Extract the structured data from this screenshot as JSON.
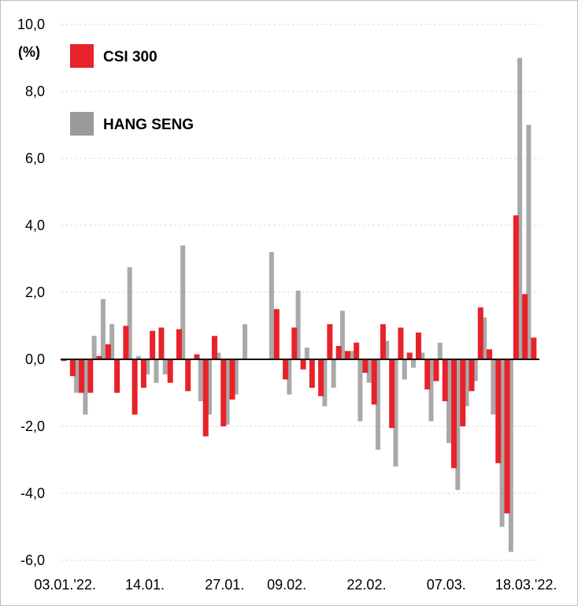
{
  "chart_data": {
    "type": "bar",
    "unit_label": "(%)",
    "ylim": [
      -6,
      10
    ],
    "y_ticks": [
      "10,0",
      "8,0",
      "6,0",
      "4,0",
      "2,0",
      "0,0",
      "-2,0",
      "-4,0",
      "-6,0"
    ],
    "y_tick_values": [
      10,
      8,
      6,
      4,
      2,
      0,
      -2,
      -4,
      -6
    ],
    "grid": true,
    "legend_position": "top-left",
    "x_labels": [
      {
        "label": "03.01.'22.",
        "index": 0
      },
      {
        "label": "14.01.",
        "index": 9
      },
      {
        "label": "27.01.",
        "index": 18
      },
      {
        "label": "09.02.",
        "index": 25
      },
      {
        "label": "22.02.",
        "index": 34
      },
      {
        "label": "07.03.",
        "index": 43
      },
      {
        "label": "18.03.'22.",
        "index": 52
      }
    ],
    "colors": {
      "csi300": "#e8222a",
      "hangseng": "#9a9a9a",
      "zero_line": "#000000",
      "grid": "#d9d9d9"
    },
    "series": [
      {
        "name": "CSI 300",
        "values": [
          -0.05,
          -0.5,
          -1.0,
          -1.0,
          0.1,
          0.45,
          -1.0,
          1.0,
          -1.65,
          -0.85,
          0.85,
          0.95,
          -0.7,
          0.9,
          -0.95,
          0.15,
          -2.3,
          0.7,
          -2.0,
          -1.2,
          null,
          null,
          null,
          null,
          1.5,
          -0.6,
          0.95,
          -0.3,
          -0.85,
          -1.1,
          1.05,
          0.4,
          0.25,
          0.5,
          -0.4,
          -1.35,
          1.05,
          -2.05,
          0.95,
          0.2,
          0.8,
          -0.9,
          -0.65,
          -1.25,
          -3.25,
          -2.0,
          -0.95,
          1.55,
          0.3,
          -3.1,
          -4.6,
          4.3,
          1.95,
          0.65
        ]
      },
      {
        "name": "HANG SENG",
        "values": [
          null,
          -1.0,
          -1.65,
          0.7,
          1.8,
          1.05,
          0.0,
          2.75,
          0.1,
          -0.45,
          -0.7,
          -0.45,
          0.0,
          3.4,
          0.0,
          -1.25,
          -1.65,
          0.2,
          -1.95,
          -1.05,
          1.05,
          null,
          null,
          3.2,
          0.0,
          -1.05,
          2.05,
          0.35,
          0.0,
          -1.4,
          -0.85,
          1.45,
          0.25,
          -1.85,
          -0.7,
          -2.7,
          0.55,
          -3.2,
          -0.6,
          -0.25,
          0.2,
          -1.85,
          0.5,
          -2.5,
          -3.9,
          -1.4,
          -0.65,
          1.25,
          -1.65,
          -5.0,
          -5.75,
          9.0,
          7.0,
          null
        ]
      }
    ]
  }
}
